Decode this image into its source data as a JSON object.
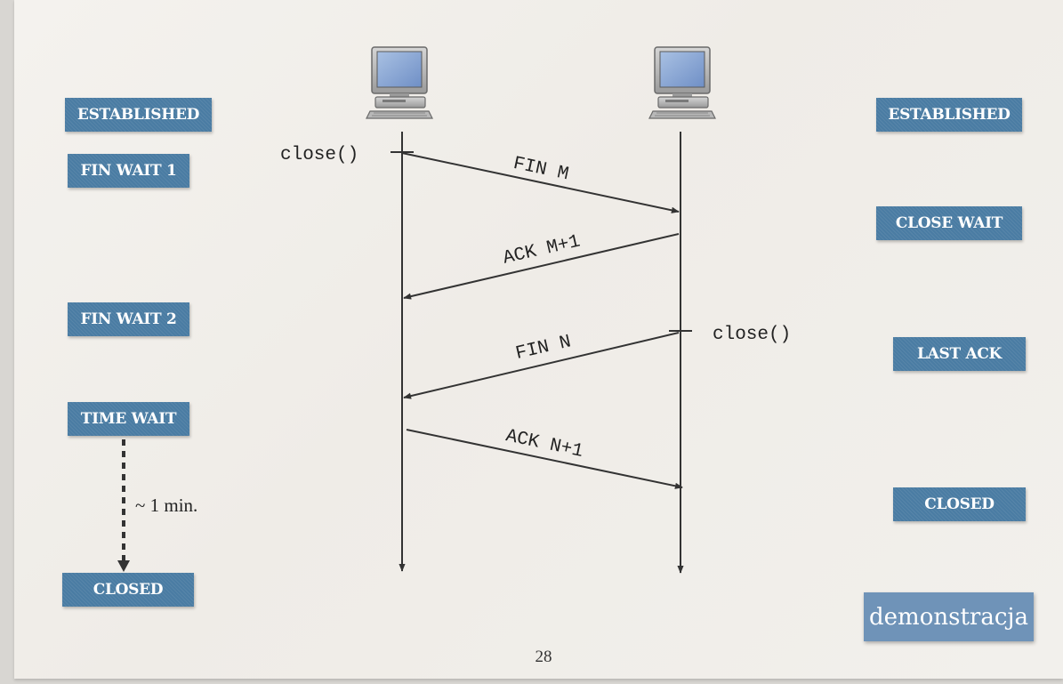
{
  "left_states": [
    {
      "id": "established",
      "label": "ESTABLISHED"
    },
    {
      "id": "fin-wait-1",
      "label": "FIN WAIT 1"
    },
    {
      "id": "fin-wait-2",
      "label": "FIN WAIT 2"
    },
    {
      "id": "time-wait",
      "label": "TIME WAIT"
    },
    {
      "id": "closed",
      "label": "CLOSED"
    }
  ],
  "right_states": [
    {
      "id": "established",
      "label": "ESTABLISHED"
    },
    {
      "id": "close-wait",
      "label": "CLOSE WAIT"
    },
    {
      "id": "last-ack",
      "label": "LAST ACK"
    },
    {
      "id": "closed",
      "label": "CLOSED"
    }
  ],
  "calls": {
    "left": "close()",
    "right": "close()"
  },
  "messages": {
    "fin_m": "FIN M",
    "ack_m1": "ACK M+1",
    "fin_n": "FIN N",
    "ack_n1": "ACK N+1"
  },
  "timeout_label": "~ 1 min.",
  "demo_button": "demonstracja",
  "page_number": "28",
  "colors": {
    "state_box": "#4a7ca3",
    "demo_button": "#6f93b8",
    "arrow": "#333333"
  },
  "icons": {
    "left_host": "computer-icon",
    "right_host": "computer-icon"
  }
}
